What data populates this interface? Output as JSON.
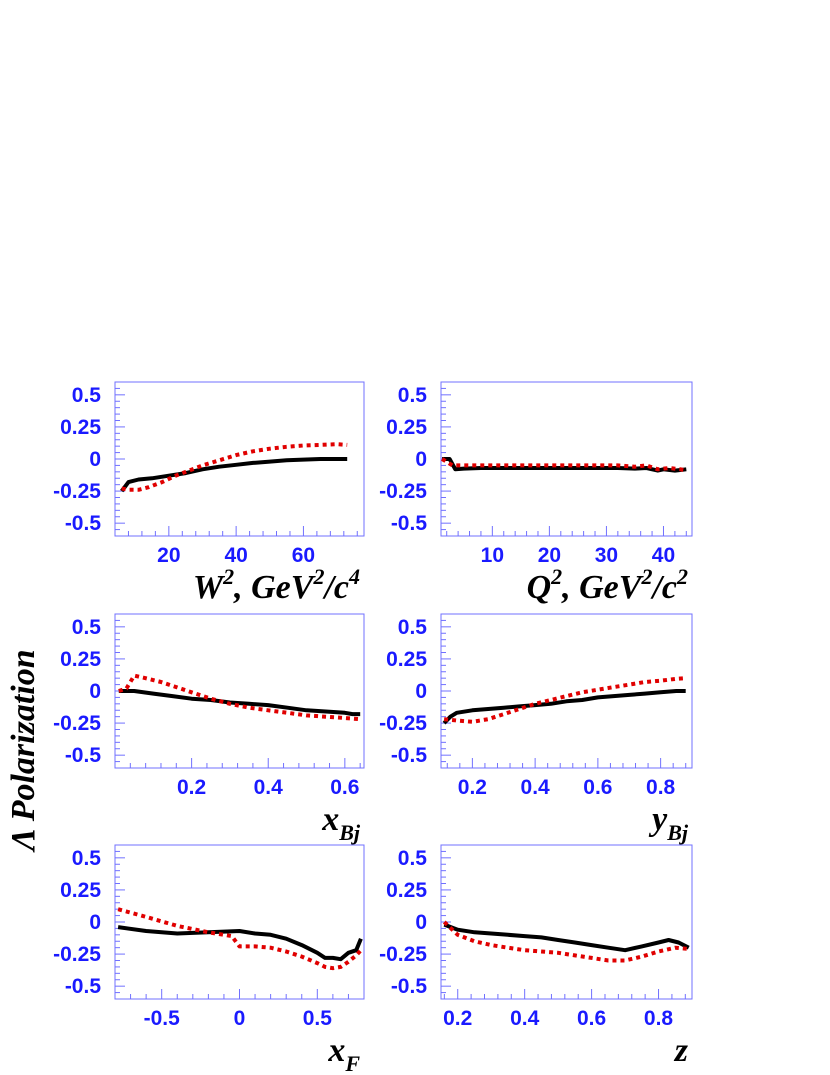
{
  "ylabel": "Λ Polarization",
  "chart_data": [
    {
      "type": "line",
      "xlabel": "W², GeV²/c⁴",
      "xlabel_parts": {
        "base": "W",
        "sup1": "2",
        "rest": ", GeV",
        "sup2": "2",
        "rest2": "/c",
        "sup3": "4"
      },
      "xlim": [
        4,
        78
      ],
      "ylim": [
        -0.6,
        0.6
      ],
      "xticks": [
        20,
        40,
        60
      ],
      "xtick_labels": [
        "20",
        "40",
        "60"
      ],
      "yticks": [
        0.5,
        0.25,
        0,
        -0.25,
        -0.5
      ],
      "ytick_labels": [
        "0.5",
        "0.25",
        "0",
        "-0.25",
        "-0.5"
      ],
      "series": [
        {
          "style": "solid",
          "color": "#000000",
          "x": [
            6,
            8,
            11,
            15,
            20,
            25,
            30,
            35,
            40,
            45,
            50,
            55,
            60,
            65,
            70,
            73
          ],
          "y": [
            -0.25,
            -0.18,
            -0.16,
            -0.15,
            -0.13,
            -0.11,
            -0.08,
            -0.06,
            -0.045,
            -0.03,
            -0.02,
            -0.01,
            -0.005,
            0,
            0,
            0
          ]
        },
        {
          "style": "dotted",
          "color": "#e00000",
          "x": [
            6,
            8,
            11,
            14,
            18,
            22,
            26,
            30,
            35,
            40,
            45,
            50,
            55,
            60,
            65,
            70,
            73
          ],
          "y": [
            -0.23,
            -0.24,
            -0.24,
            -0.22,
            -0.18,
            -0.13,
            -0.09,
            -0.05,
            -0.01,
            0.03,
            0.06,
            0.08,
            0.095,
            0.105,
            0.11,
            0.115,
            0.11
          ]
        }
      ]
    },
    {
      "type": "line",
      "xlabel": "Q², GeV²/c²",
      "xlabel_parts": {
        "base": "Q",
        "sup1": "2",
        "rest": ", GeV",
        "sup2": "2",
        "rest2": "/c",
        "sup3": "2"
      },
      "xlim": [
        1,
        45
      ],
      "ylim": [
        -0.6,
        0.6
      ],
      "xticks": [
        10,
        20,
        30,
        40
      ],
      "xtick_labels": [
        "10",
        "20",
        "30",
        "40"
      ],
      "yticks": [
        0.5,
        0.25,
        0,
        -0.25,
        -0.5
      ],
      "ytick_labels": [
        "0.5",
        "0.25",
        "0",
        "-0.25",
        "-0.5"
      ],
      "series": [
        {
          "style": "solid",
          "color": "#000000",
          "x": [
            1.2,
            2.5,
            3.5,
            5,
            8,
            12,
            16,
            20,
            24,
            28,
            32,
            35,
            37,
            39,
            40,
            42,
            44
          ],
          "y": [
            0,
            0,
            -0.08,
            -0.075,
            -0.07,
            -0.07,
            -0.07,
            -0.07,
            -0.07,
            -0.07,
            -0.07,
            -0.075,
            -0.07,
            -0.09,
            -0.08,
            -0.09,
            -0.08
          ]
        },
        {
          "style": "dotted",
          "color": "#e00000",
          "x": [
            1.2,
            3,
            5,
            8,
            12,
            16,
            20,
            24,
            28,
            32,
            35,
            37,
            39,
            41,
            43,
            44
          ],
          "y": [
            0,
            -0.05,
            -0.05,
            -0.05,
            -0.05,
            -0.05,
            -0.05,
            -0.05,
            -0.05,
            -0.05,
            -0.06,
            -0.05,
            -0.08,
            -0.07,
            -0.08,
            -0.09
          ]
        }
      ]
    },
    {
      "type": "line",
      "xlabel": "x_Bj",
      "xlabel_parts": {
        "base": "x",
        "sub": "Bj"
      },
      "xlim": [
        0,
        0.65
      ],
      "ylim": [
        -0.6,
        0.6
      ],
      "xticks": [
        0.2,
        0.4,
        0.6
      ],
      "xtick_labels": [
        "0.2",
        "0.4",
        "0.6"
      ],
      "yticks": [
        0.5,
        0.25,
        0,
        -0.25,
        -0.5
      ],
      "ytick_labels": [
        "0.5",
        "0.25",
        "0",
        "-0.25",
        "-0.5"
      ],
      "series": [
        {
          "style": "solid",
          "color": "#000000",
          "x": [
            0.01,
            0.05,
            0.1,
            0.15,
            0.2,
            0.25,
            0.3,
            0.35,
            0.4,
            0.45,
            0.5,
            0.55,
            0.6,
            0.62,
            0.64
          ],
          "y": [
            0,
            0,
            -0.02,
            -0.04,
            -0.06,
            -0.07,
            -0.09,
            -0.1,
            -0.11,
            -0.13,
            -0.15,
            -0.16,
            -0.17,
            -0.18,
            -0.18
          ]
        },
        {
          "style": "dotted",
          "color": "#e00000",
          "x": [
            0.01,
            0.03,
            0.05,
            0.08,
            0.12,
            0.16,
            0.2,
            0.25,
            0.3,
            0.35,
            0.4,
            0.45,
            0.5,
            0.55,
            0.6,
            0.64
          ],
          "y": [
            0,
            0.02,
            0.12,
            0.1,
            0.07,
            0.03,
            -0.01,
            -0.06,
            -0.1,
            -0.13,
            -0.15,
            -0.17,
            -0.19,
            -0.2,
            -0.21,
            -0.22
          ]
        }
      ]
    },
    {
      "type": "line",
      "xlabel": "y_Bj",
      "xlabel_parts": {
        "base": "y",
        "sub": "Bj"
      },
      "xlim": [
        0.1,
        0.9
      ],
      "ylim": [
        -0.6,
        0.6
      ],
      "xticks": [
        0.2,
        0.4,
        0.6,
        0.8
      ],
      "xtick_labels": [
        "0.2",
        "0.4",
        "0.6",
        "0.8"
      ],
      "yticks": [
        0.5,
        0.25,
        0,
        -0.25,
        -0.5
      ],
      "ytick_labels": [
        "0.5",
        "0.25",
        "0",
        "-0.25",
        "-0.5"
      ],
      "series": [
        {
          "style": "solid",
          "color": "#000000",
          "x": [
            0.11,
            0.13,
            0.15,
            0.2,
            0.25,
            0.3,
            0.35,
            0.4,
            0.45,
            0.5,
            0.55,
            0.6,
            0.65,
            0.7,
            0.75,
            0.8,
            0.85,
            0.88
          ],
          "y": [
            -0.25,
            -0.2,
            -0.17,
            -0.15,
            -0.14,
            -0.13,
            -0.12,
            -0.11,
            -0.1,
            -0.08,
            -0.07,
            -0.05,
            -0.04,
            -0.03,
            -0.02,
            -0.01,
            0,
            0
          ]
        },
        {
          "style": "dotted",
          "color": "#e00000",
          "x": [
            0.11,
            0.15,
            0.2,
            0.25,
            0.3,
            0.35,
            0.4,
            0.45,
            0.5,
            0.55,
            0.6,
            0.65,
            0.7,
            0.75,
            0.8,
            0.85,
            0.88
          ],
          "y": [
            -0.22,
            -0.23,
            -0.24,
            -0.22,
            -0.18,
            -0.14,
            -0.1,
            -0.07,
            -0.04,
            -0.01,
            0.01,
            0.03,
            0.05,
            0.07,
            0.08,
            0.095,
            0.1
          ]
        }
      ]
    },
    {
      "type": "line",
      "xlabel": "x_F",
      "xlabel_parts": {
        "base": "x",
        "sub": "F"
      },
      "xlim": [
        -0.8,
        0.8
      ],
      "ylim": [
        -0.6,
        0.6
      ],
      "xticks": [
        -0.5,
        0,
        0.5
      ],
      "xtick_labels": [
        "-0.5",
        "0",
        "0.5"
      ],
      "yticks": [
        0.5,
        0.25,
        0,
        -0.25,
        -0.5
      ],
      "ytick_labels": [
        "0.5",
        "0.25",
        "0",
        "-0.25",
        "-0.5"
      ],
      "series": [
        {
          "style": "solid",
          "color": "#000000",
          "x": [
            -0.78,
            -0.6,
            -0.4,
            -0.2,
            0,
            0.1,
            0.2,
            0.3,
            0.4,
            0.5,
            0.55,
            0.6,
            0.65,
            0.7,
            0.75,
            0.78
          ],
          "y": [
            -0.04,
            -0.07,
            -0.09,
            -0.08,
            -0.07,
            -0.09,
            -0.1,
            -0.13,
            -0.18,
            -0.24,
            -0.28,
            -0.28,
            -0.29,
            -0.24,
            -0.22,
            -0.13
          ]
        },
        {
          "style": "dotted",
          "color": "#e00000",
          "x": [
            -0.78,
            -0.6,
            -0.4,
            -0.2,
            -0.05,
            0,
            0.1,
            0.2,
            0.3,
            0.4,
            0.5,
            0.55,
            0.6,
            0.65,
            0.7,
            0.75,
            0.78
          ],
          "y": [
            0.1,
            0.04,
            -0.03,
            -0.08,
            -0.11,
            -0.19,
            -0.19,
            -0.2,
            -0.23,
            -0.27,
            -0.32,
            -0.35,
            -0.36,
            -0.35,
            -0.31,
            -0.26,
            -0.22
          ]
        }
      ]
    },
    {
      "type": "line",
      "xlabel": "z",
      "xlabel_parts": {
        "base": "z"
      },
      "xlim": [
        0.15,
        0.9
      ],
      "ylim": [
        -0.6,
        0.6
      ],
      "xticks": [
        0.2,
        0.4,
        0.6,
        0.8
      ],
      "xtick_labels": [
        "0.2",
        "0.4",
        "0.6",
        "0.8"
      ],
      "yticks": [
        0.5,
        0.25,
        0,
        -0.25,
        -0.5
      ],
      "ytick_labels": [
        "0.5",
        "0.25",
        "0",
        "-0.25",
        "-0.5"
      ],
      "series": [
        {
          "style": "solid",
          "color": "#000000",
          "x": [
            0.16,
            0.2,
            0.25,
            0.3,
            0.35,
            0.4,
            0.45,
            0.5,
            0.55,
            0.6,
            0.65,
            0.7,
            0.75,
            0.8,
            0.83,
            0.86,
            0.89
          ],
          "y": [
            -0.02,
            -0.06,
            -0.08,
            -0.09,
            -0.1,
            -0.11,
            -0.12,
            -0.14,
            -0.16,
            -0.18,
            -0.2,
            -0.22,
            -0.19,
            -0.16,
            -0.14,
            -0.16,
            -0.2
          ]
        },
        {
          "style": "dotted",
          "color": "#e00000",
          "x": [
            0.16,
            0.2,
            0.25,
            0.3,
            0.35,
            0.4,
            0.45,
            0.5,
            0.55,
            0.6,
            0.65,
            0.7,
            0.75,
            0.8,
            0.85,
            0.89
          ],
          "y": [
            0,
            -0.1,
            -0.15,
            -0.18,
            -0.2,
            -0.22,
            -0.23,
            -0.24,
            -0.26,
            -0.28,
            -0.3,
            -0.3,
            -0.27,
            -0.23,
            -0.2,
            -0.21
          ]
        }
      ]
    }
  ]
}
